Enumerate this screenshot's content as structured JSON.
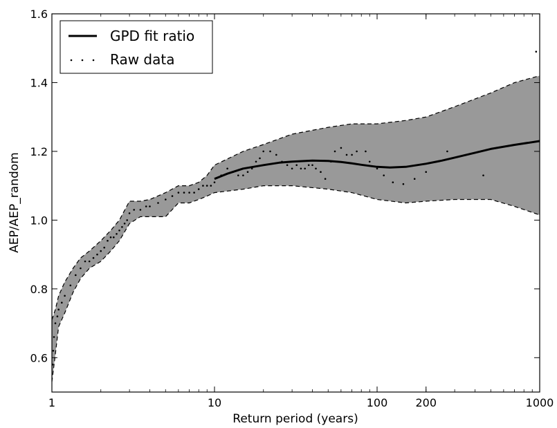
{
  "chart_data": {
    "type": "line",
    "xlabel": "Return period (years)",
    "ylabel": "AEP/AEP_random",
    "xscale": "log",
    "xlim": [
      1,
      1000
    ],
    "ylim": [
      0.5,
      1.6
    ],
    "grid": false,
    "legend_position": "top-left",
    "x_ticks": [
      {
        "value": 1,
        "label": "1"
      },
      {
        "value": 10,
        "label": "10"
      },
      {
        "value": 100,
        "label": "100"
      },
      {
        "value": 200,
        "label": "200"
      },
      {
        "value": 1000,
        "label": "1000"
      }
    ],
    "y_ticks": [
      {
        "value": 0.6,
        "label": "0.6"
      },
      {
        "value": 0.8,
        "label": "0.8"
      },
      {
        "value": 1.0,
        "label": "1.0"
      },
      {
        "value": 1.2,
        "label": "1.2"
      },
      {
        "value": 1.4,
        "label": "1.4"
      },
      {
        "value": 1.6,
        "label": "1.6"
      }
    ],
    "legend": [
      {
        "label": "GPD fit ratio",
        "style": "line"
      },
      {
        "label": "Raw data",
        "style": "dots"
      }
    ],
    "colors": {
      "band": "#999999",
      "line": "#000000",
      "bounds": "#000000"
    },
    "band": {
      "x": [
        1.0,
        1.05,
        1.1,
        1.2,
        1.35,
        1.5,
        1.7,
        2.0,
        2.3,
        2.6,
        3.0,
        3.5,
        4.0,
        5.0,
        6.0,
        7.0,
        8.0,
        9.0,
        10,
        15,
        20,
        30,
        50,
        70,
        100,
        150,
        200,
        300,
        500,
        700,
        1000
      ],
      "upper": [
        0.71,
        0.74,
        0.78,
        0.82,
        0.86,
        0.89,
        0.91,
        0.94,
        0.97,
        1.0,
        1.055,
        1.055,
        1.06,
        1.08,
        1.1,
        1.1,
        1.11,
        1.13,
        1.16,
        1.2,
        1.22,
        1.25,
        1.27,
        1.28,
        1.28,
        1.29,
        1.3,
        1.33,
        1.37,
        1.4,
        1.42
      ],
      "lower": [
        0.53,
        0.61,
        0.69,
        0.73,
        0.79,
        0.83,
        0.86,
        0.88,
        0.91,
        0.94,
        0.99,
        1.01,
        1.01,
        1.01,
        1.05,
        1.05,
        1.06,
        1.07,
        1.08,
        1.09,
        1.1,
        1.1,
        1.09,
        1.08,
        1.06,
        1.05,
        1.055,
        1.06,
        1.06,
        1.04,
        1.015
      ]
    },
    "series": [
      {
        "name": "GPD fit ratio",
        "style": "line",
        "x": [
          10,
          12,
          15,
          20,
          25,
          30,
          40,
          50,
          60,
          70,
          80,
          100,
          120,
          150,
          200,
          250,
          300,
          400,
          500,
          700,
          1000
        ],
        "y": [
          1.12,
          1.135,
          1.15,
          1.16,
          1.167,
          1.17,
          1.173,
          1.172,
          1.169,
          1.165,
          1.161,
          1.155,
          1.153,
          1.155,
          1.164,
          1.173,
          1.182,
          1.196,
          1.207,
          1.219,
          1.23
        ]
      },
      {
        "name": "Raw data",
        "style": "dots",
        "x": [
          1.01,
          1.02,
          1.03,
          1.05,
          1.08,
          1.1,
          1.15,
          1.2,
          1.3,
          1.4,
          1.5,
          1.6,
          1.7,
          1.8,
          1.9,
          2.0,
          2.1,
          2.2,
          2.3,
          2.4,
          2.5,
          2.6,
          2.7,
          2.8,
          2.9,
          3.0,
          3.2,
          3.5,
          3.8,
          4.0,
          4.5,
          5.0,
          5.5,
          6.0,
          6.5,
          7.0,
          7.5,
          8.0,
          8.5,
          9.0,
          9.5,
          10,
          11,
          12,
          13,
          14,
          15,
          16,
          17,
          18,
          19,
          20,
          22,
          24,
          26,
          28,
          30,
          32,
          34,
          36,
          38,
          40,
          42,
          45,
          48,
          52,
          55,
          60,
          65,
          70,
          75,
          85,
          90,
          100,
          110,
          125,
          145,
          170,
          200,
          270,
          450,
          950
        ],
        "y": [
          0.58,
          0.62,
          0.66,
          0.7,
          0.72,
          0.74,
          0.76,
          0.78,
          0.81,
          0.84,
          0.86,
          0.88,
          0.88,
          0.89,
          0.9,
          0.91,
          0.92,
          0.94,
          0.95,
          0.95,
          0.96,
          0.97,
          0.98,
          0.99,
          1.0,
          1.02,
          1.03,
          1.03,
          1.04,
          1.04,
          1.05,
          1.06,
          1.07,
          1.08,
          1.08,
          1.08,
          1.08,
          1.09,
          1.1,
          1.1,
          1.1,
          1.11,
          1.13,
          1.15,
          1.14,
          1.13,
          1.13,
          1.14,
          1.15,
          1.17,
          1.18,
          1.2,
          1.2,
          1.19,
          1.17,
          1.16,
          1.15,
          1.16,
          1.15,
          1.15,
          1.16,
          1.16,
          1.15,
          1.14,
          1.12,
          1.17,
          1.2,
          1.21,
          1.19,
          1.19,
          1.2,
          1.2,
          1.17,
          1.15,
          1.13,
          1.11,
          1.105,
          1.12,
          1.14,
          1.2,
          1.13,
          1.49
        ]
      }
    ]
  }
}
